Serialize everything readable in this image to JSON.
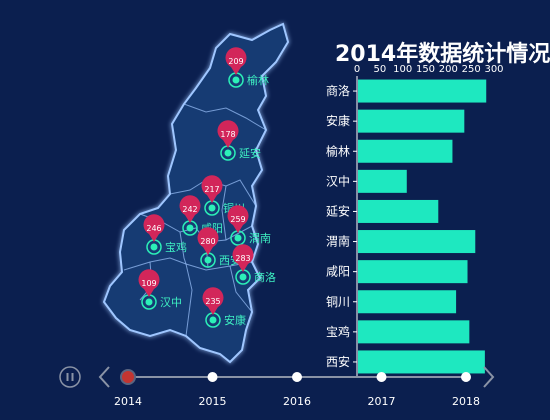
{
  "title": "2014年数据统计情况",
  "colors": {
    "background": "#0b1f4f",
    "bar": "#1ee8c0",
    "pin": "#d2265a",
    "map_fill": "#133a73",
    "map_stroke": "#9fc6ff",
    "marker": "#2cf0b8",
    "timeline": "#8a93a6",
    "active_year": "#c23531"
  },
  "map_cities": [
    {
      "name": "榆林",
      "value": 209
    },
    {
      "name": "延安",
      "value": 178
    },
    {
      "name": "铜川",
      "value": 217
    },
    {
      "name": "咸阳",
      "value": 242
    },
    {
      "name": "宝鸡",
      "value": 246
    },
    {
      "name": "渭南",
      "value": 259
    },
    {
      "name": "西安",
      "value": 280
    },
    {
      "name": "商洛",
      "value": 283
    },
    {
      "name": "汉中",
      "value": 109
    },
    {
      "name": "安康",
      "value": 235
    }
  ],
  "chart_data": {
    "type": "bar",
    "orientation": "horizontal",
    "title": "2014年数据统计情况",
    "categories": [
      "商洛",
      "安康",
      "榆林",
      "汉中",
      "延安",
      "渭南",
      "咸阳",
      "铜川",
      "宝鸡",
      "西安"
    ],
    "values": [
      283,
      235,
      209,
      109,
      178,
      259,
      242,
      217,
      246,
      280
    ],
    "xlim": [
      0,
      300
    ],
    "xticks": [
      0,
      50,
      100,
      150,
      200,
      250,
      300
    ],
    "x_axis_position": "top",
    "grid": false,
    "legend": "none"
  },
  "timeline": {
    "years": [
      "2014",
      "2015",
      "2016",
      "2017",
      "2018"
    ],
    "active": "2014",
    "play_icon": "pause-icon",
    "prev_icon": "chevron-left-icon",
    "next_icon": "chevron-right-icon"
  }
}
